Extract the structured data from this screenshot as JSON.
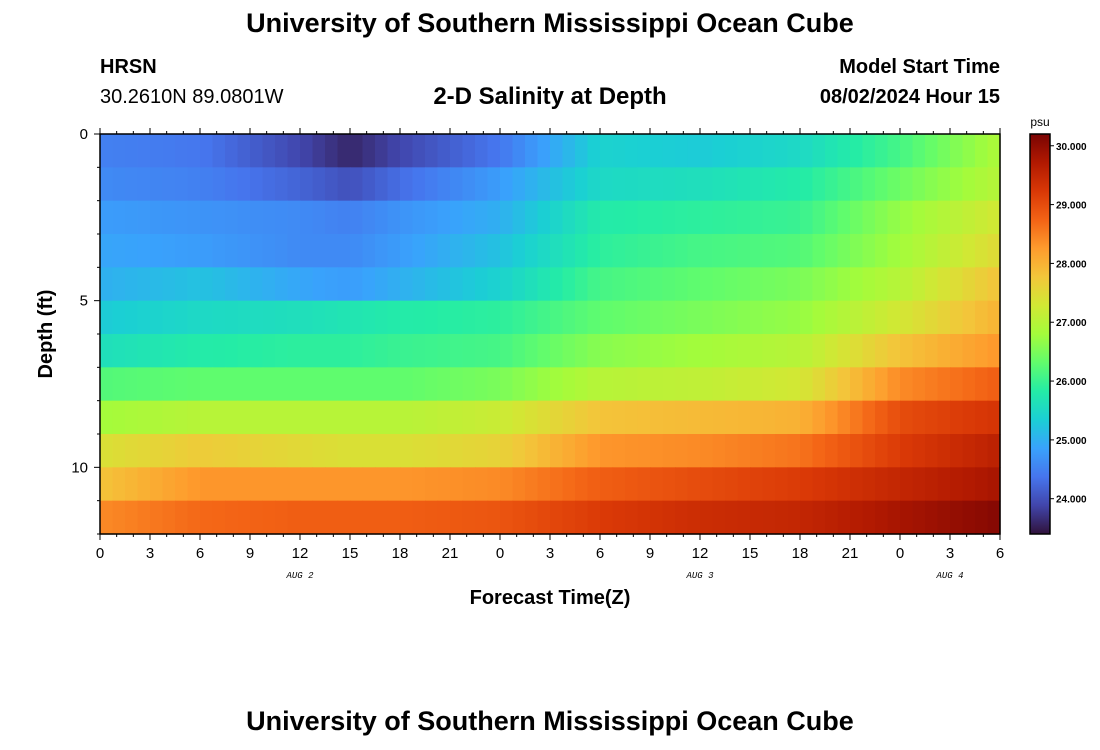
{
  "header": {
    "main_title": "University of Southern Mississippi Ocean Cube",
    "station_name": "HRSN",
    "station_coords": "30.2610N  89.0801W",
    "chart_title": "2-D Salinity at Depth",
    "model_start_label": "Model Start Time",
    "model_start_value": "08/02/2024 Hour 15"
  },
  "footer": {
    "repeat_title": "University of Southern Mississippi Ocean Cube"
  },
  "chart_data": {
    "type": "heatmap",
    "title": "2-D Salinity at Depth",
    "xlabel": "Forecast Time(Z)",
    "ylabel": "Depth (ft)",
    "x_hours_range": [
      0,
      54
    ],
    "x_tick_labels": [
      "0",
      "3",
      "6",
      "9",
      "12",
      "15",
      "18",
      "21",
      "0",
      "3",
      "6",
      "9",
      "12",
      "15",
      "18",
      "21",
      "0",
      "3",
      "6"
    ],
    "day_labels": [
      {
        "label": "AUG 2",
        "hour": 12
      },
      {
        "label": "AUG 3",
        "hour": 36
      },
      {
        "label": "AUG 4",
        "hour": 51
      }
    ],
    "ylim": [
      0,
      12
    ],
    "y_ticks": [
      0,
      5,
      10
    ],
    "color_scale": {
      "unit": "psu",
      "range": [
        23.4,
        30.2
      ],
      "tick_values": [
        24,
        25,
        26,
        27,
        28,
        29,
        30
      ],
      "tick_labels": [
        "24.000",
        "25.000",
        "26.000",
        "27.000",
        "28.000",
        "29.000",
        "30.000"
      ],
      "colormap": [
        "#30123b",
        "#4145ab",
        "#4675ed",
        "#39a2fc",
        "#1bcfd4",
        "#24eca6",
        "#61fc6c",
        "#a4fc3b",
        "#d1e834",
        "#f3c63a",
        "#fe9b2d",
        "#f36315",
        "#d93806",
        "#b11901",
        "#7a0403"
      ]
    },
    "depth_levels_ft": [
      0.5,
      1.5,
      2.5,
      3.5,
      4.5,
      5.5,
      6.5,
      7.5,
      8.5,
      9.5,
      10.5,
      11.5
    ],
    "time_keypoints_hours": [
      0,
      6,
      12,
      15,
      18,
      24,
      30,
      36,
      42,
      48,
      54
    ],
    "salinity_psu": [
      [
        24.5,
        24.4,
        23.9,
        23.6,
        23.9,
        24.4,
        25.4,
        25.3,
        25.5,
        26.1,
        26.9
      ],
      [
        24.6,
        24.5,
        24.2,
        24.0,
        24.3,
        24.8,
        25.5,
        25.6,
        25.8,
        26.4,
        27.0
      ],
      [
        24.8,
        24.7,
        24.6,
        24.5,
        24.7,
        25.0,
        25.8,
        25.9,
        26.0,
        26.7,
        27.3
      ],
      [
        24.9,
        24.8,
        24.6,
        24.6,
        24.8,
        25.2,
        25.9,
        26.1,
        26.2,
        26.8,
        27.5
      ],
      [
        25.0,
        25.2,
        24.9,
        24.8,
        25.0,
        25.4,
        26.1,
        26.3,
        26.5,
        27.0,
        27.8
      ],
      [
        25.3,
        25.5,
        25.6,
        25.7,
        25.8,
        25.9,
        26.3,
        26.5,
        26.7,
        27.3,
        28.0
      ],
      [
        25.6,
        25.8,
        25.9,
        25.9,
        26.0,
        26.1,
        26.6,
        26.8,
        27.0,
        27.8,
        28.3
      ],
      [
        26.2,
        26.3,
        26.3,
        26.3,
        26.3,
        26.5,
        27.0,
        27.1,
        27.3,
        28.4,
        28.8
      ],
      [
        26.8,
        27.0,
        27.0,
        27.0,
        27.0,
        27.2,
        27.8,
        27.9,
        28.0,
        29.0,
        29.3
      ],
      [
        27.4,
        27.7,
        27.5,
        27.4,
        27.4,
        27.6,
        28.3,
        28.4,
        28.6,
        29.2,
        29.6
      ],
      [
        27.8,
        28.3,
        28.3,
        28.3,
        28.3,
        28.4,
        28.8,
        29.0,
        29.2,
        29.5,
        29.8
      ],
      [
        28.4,
        28.7,
        28.8,
        28.8,
        28.8,
        28.9,
        29.2,
        29.4,
        29.5,
        29.8,
        30.1
      ]
    ]
  }
}
